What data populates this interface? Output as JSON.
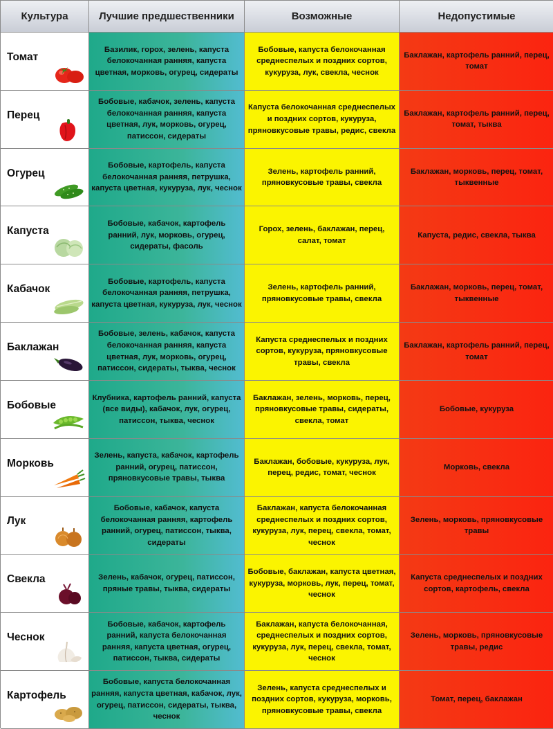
{
  "headers": {
    "crop": "Культура",
    "best": "Лучшие предшественники",
    "possible": "Возможные",
    "forbidden": "Недопустимые"
  },
  "colors": {
    "best": "#2ab09a",
    "possible": "#fbf400",
    "forbidden": "#f7300f"
  },
  "rows": [
    {
      "crop": "Томат",
      "icon": "tomato-icon",
      "best": "Базилик, горох, зелень, капуста белокочанная ранняя, капуста цветная, морковь, огурец, сидераты",
      "possible": "Бобовые, капуста белокочанная среднеспелых и поздних сортов, кукуруза, лук, свекла, чеснок",
      "forbidden": "Баклажан, картофель ранний, перец, томат"
    },
    {
      "crop": "Перец",
      "icon": "pepper-icon",
      "best": "Бобовые, кабачок, зелень, капуста белокочанная ранняя, капуста цветная, лук, морковь, огурец, патиссон, сидераты",
      "possible": "Капуста белокочанная среднеспелых и поздних сортов, кукуруза, пряновкусовые травы, редис, свекла",
      "forbidden": "Баклажан, картофель ранний, перец, томат, тыква"
    },
    {
      "crop": "Огурец",
      "icon": "cucumber-icon",
      "best": "Бобовые, картофель, капуста белокочанная ранняя, петрушка, капуста цветная, кукуруза, лук, чеснок",
      "possible": "Зелень, картофель ранний, пряновкусовые травы, свекла",
      "forbidden": "Баклажан, морковь, перец, томат, тыквенные"
    },
    {
      "crop": "Капуста",
      "icon": "cabbage-icon",
      "best": "Бобовые, кабачок, картофель ранний, лук, морковь, огурец, сидераты, фасоль",
      "possible": "Горох, зелень, баклажан, перец, салат, томат",
      "forbidden": "Капуста, редис, свекла, тыква"
    },
    {
      "crop": "Кабачок",
      "icon": "zucchini-icon",
      "best": "Бобовые, картофель, капуста белокочанная ранняя, петрушка, капуста цветная, кукуруза, лук, чеснок",
      "possible": "Зелень, картофель ранний, пряновкусовые травы, свекла",
      "forbidden": "Баклажан, морковь, перец, томат, тыквенные"
    },
    {
      "crop": "Баклажан",
      "icon": "eggplant-icon",
      "best": "Бобовые, зелень, кабачок, капуста белокочанная ранняя, капуста цветная, лук, морковь, огурец, патиссон, сидераты, тыква, чеснок",
      "possible": "Капуста среднеспелых и поздних сортов, кукуруза, пряновкусовые травы, свекла",
      "forbidden": "Баклажан, картофель ранний, перец, томат"
    },
    {
      "crop": "Бобовые",
      "icon": "peas-icon",
      "best": "Клубника, картофель ранний, капуста (все виды), кабачок, лук, огурец, патиссон, тыква, чеснок",
      "possible": "Баклажан, зелень, морковь, перец, пряновкусовые травы, сидераты, свекла, томат",
      "forbidden": "Бобовые, кукуруза"
    },
    {
      "crop": "Морковь",
      "icon": "carrot-icon",
      "best": "Зелень, капуста, кабачок, картофель ранний, огурец, патиссон, пряновкусовые травы, тыква",
      "possible": "Баклажан, бобовые, кукуруза, лук, перец, редис, томат, чеснок",
      "forbidden": "Морковь, свекла"
    },
    {
      "crop": "Лук",
      "icon": "onion-icon",
      "best": "Бобовые, кабачок, капуста белокочанная ранняя, картофель ранний, огурец, патиссон, тыква, сидераты",
      "possible": "Баклажан, капуста белокочанная среднеспелых и поздних сортов, кукуруза, лук, перец, свекла, томат, чеснок",
      "forbidden": "Зелень, морковь, пряновкусовые травы"
    },
    {
      "crop": "Свекла",
      "icon": "beet-icon",
      "best": "Зелень, кабачок, огурец, патиссон, пряные травы, тыква, сидераты",
      "possible": "Бобовые, баклажан, капуста цветная, кукуруза, морковь, лук, перец, томат, чеснок",
      "forbidden": "Капуста среднеспелых и поздних сортов, картофель, свекла"
    },
    {
      "crop": "Чеснок",
      "icon": "garlic-icon",
      "best": "Бобовые, кабачок, картофель ранний, капуста белокочанная ранняя, капуста цветная, огурец, патиссон, тыква, сидераты",
      "possible": "Баклажан, капуста белокочанная, среднеспелых и поздних сортов, кукуруза, лук, перец, свекла, томат, чеснок",
      "forbidden": "Зелень, морковь, пряновкусовые травы, редис"
    },
    {
      "crop": "Картофель",
      "icon": "potato-icon",
      "best": "Бобовые, капуста белокочанная ранняя, капуста цветная, кабачок, лук, огурец, патиссон, сидераты, тыква, чеснок",
      "possible": "Зелень, капуста среднеспелых и поздних сортов, кукуруза, морковь, пряновкусовые травы, свекла",
      "forbidden": "Томат, перец, баклажан"
    }
  ]
}
